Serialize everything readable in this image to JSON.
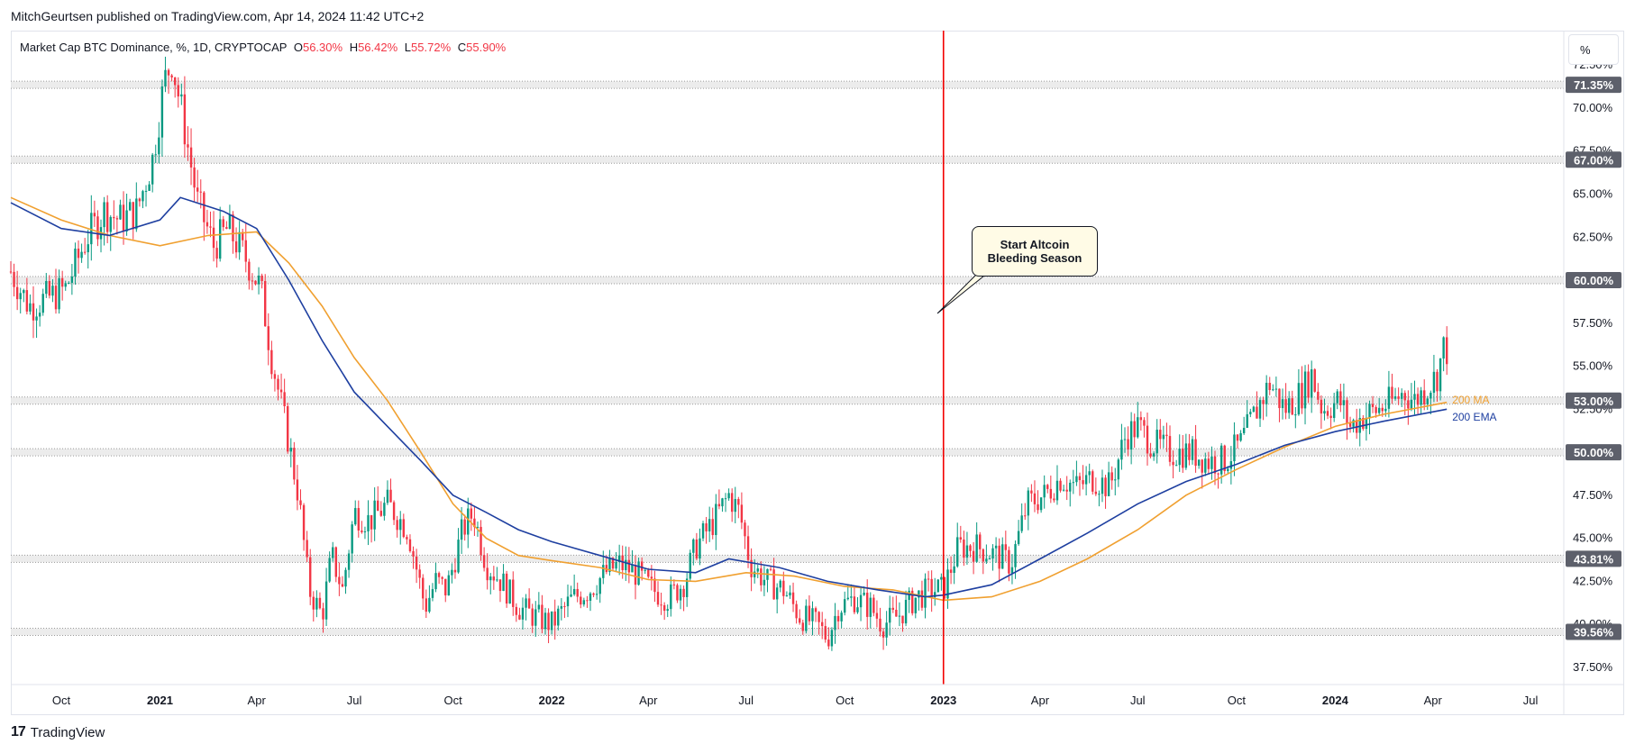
{
  "header": {
    "publisher": "MitchGeurtsen published on TradingView.com, Apr 14, 2024 11:42 UTC+2"
  },
  "legend": {
    "symbol": "Market Cap BTC Dominance, %, 1D, CRYPTOCAP",
    "open_label": "O",
    "open_value": "56.30%",
    "high_label": "H",
    "high_value": "56.42%",
    "low_label": "L",
    "low_value": "55.72%",
    "close_label": "C",
    "close_value": "55.90%"
  },
  "unit_button": {
    "label": "%"
  },
  "annotation": {
    "line1": "Start Altcoin",
    "line2": "Bleeding Season"
  },
  "moving_averages": {
    "ma_label": "200 MA",
    "ema_label": "200 EMA"
  },
  "footer": {
    "brand": "TradingView",
    "logo_glyph": "17"
  },
  "colors": {
    "up": "#089981",
    "down": "#f23645",
    "ma": "#f0a030",
    "ema": "#1e3fa0",
    "event_line": "#f20000",
    "level_band": "#e6e6e6",
    "price_label_bg": "#5d606b"
  },
  "chart_data": {
    "type": "candlestick",
    "title": "Market Cap BTC Dominance, %, 1D, CRYPTOCAP",
    "y_unit": "%",
    "ylim": [
      36.5,
      74.5
    ],
    "y_ticks": [
      "72.50%",
      "70.00%",
      "67.50%",
      "65.00%",
      "62.50%",
      "60.00%",
      "57.50%",
      "55.00%",
      "52.50%",
      "50.00%",
      "47.50%",
      "45.00%",
      "42.50%",
      "40.00%",
      "37.50%"
    ],
    "y_tick_values": [
      72.5,
      70,
      67.5,
      65,
      62.5,
      60,
      57.5,
      55,
      52.5,
      50,
      47.5,
      45,
      42.5,
      40,
      37.5
    ],
    "x_range": [
      "2020-08-15",
      "2024-08-01"
    ],
    "x_ticks": [
      {
        "date": "2020-10-01",
        "label": "Oct",
        "bold": false
      },
      {
        "date": "2021-01-01",
        "label": "2021",
        "bold": true
      },
      {
        "date": "2021-04-01",
        "label": "Apr",
        "bold": false
      },
      {
        "date": "2021-07-01",
        "label": "Jul",
        "bold": false
      },
      {
        "date": "2021-10-01",
        "label": "Oct",
        "bold": false
      },
      {
        "date": "2022-01-01",
        "label": "2022",
        "bold": true
      },
      {
        "date": "2022-04-01",
        "label": "Apr",
        "bold": false
      },
      {
        "date": "2022-07-01",
        "label": "Jul",
        "bold": false
      },
      {
        "date": "2022-10-01",
        "label": "Oct",
        "bold": false
      },
      {
        "date": "2023-01-01",
        "label": "2023",
        "bold": true
      },
      {
        "date": "2023-04-01",
        "label": "Apr",
        "bold": false
      },
      {
        "date": "2023-07-01",
        "label": "Jul",
        "bold": false
      },
      {
        "date": "2023-10-01",
        "label": "Oct",
        "bold": false
      },
      {
        "date": "2024-01-01",
        "label": "2024",
        "bold": true
      },
      {
        "date": "2024-04-01",
        "label": "Apr",
        "bold": false
      },
      {
        "date": "2024-07-01",
        "label": "Jul",
        "bold": false
      }
    ],
    "horizontal_levels": [
      {
        "value": 71.35,
        "label": "71.35%"
      },
      {
        "value": 67.0,
        "label": "67.00%"
      },
      {
        "value": 60.0,
        "label": "60.00%"
      },
      {
        "value": 53.0,
        "label": "53.00%"
      },
      {
        "value": 50.0,
        "label": "50.00%"
      },
      {
        "value": 43.81,
        "label": "43.81%"
      },
      {
        "value": 39.56,
        "label": "39.56%"
      }
    ],
    "event_line": {
      "date": "2023-01-01"
    },
    "price_path": [
      {
        "date": "2020-08-15",
        "value": 60.5
      },
      {
        "date": "2020-09-01",
        "value": 58.5
      },
      {
        "date": "2020-09-20",
        "value": 59.0
      },
      {
        "date": "2020-10-05",
        "value": 59.5
      },
      {
        "date": "2020-10-25",
        "value": 62.5
      },
      {
        "date": "2020-11-10",
        "value": 64.0
      },
      {
        "date": "2020-11-25",
        "value": 63.5
      },
      {
        "date": "2020-12-10",
        "value": 64.0
      },
      {
        "date": "2020-12-25",
        "value": 67.0
      },
      {
        "date": "2021-01-05",
        "value": 71.5
      },
      {
        "date": "2021-01-12",
        "value": 72.8
      },
      {
        "date": "2021-01-22",
        "value": 69.5
      },
      {
        "date": "2021-02-05",
        "value": 64.5
      },
      {
        "date": "2021-02-20",
        "value": 62.0
      },
      {
        "date": "2021-03-05",
        "value": 63.0
      },
      {
        "date": "2021-03-20",
        "value": 61.5
      },
      {
        "date": "2021-04-05",
        "value": 59.5
      },
      {
        "date": "2021-04-15",
        "value": 55.5
      },
      {
        "date": "2021-04-28",
        "value": 51.5
      },
      {
        "date": "2021-05-10",
        "value": 47.5
      },
      {
        "date": "2021-05-20",
        "value": 42.0
      },
      {
        "date": "2021-06-01",
        "value": 40.5
      },
      {
        "date": "2021-06-10",
        "value": 44.0
      },
      {
        "date": "2021-06-20",
        "value": 42.0
      },
      {
        "date": "2021-07-01",
        "value": 46.5
      },
      {
        "date": "2021-07-15",
        "value": 46.0
      },
      {
        "date": "2021-08-01",
        "value": 47.0
      },
      {
        "date": "2021-08-20",
        "value": 45.5
      },
      {
        "date": "2021-09-05",
        "value": 41.0
      },
      {
        "date": "2021-09-15",
        "value": 42.5
      },
      {
        "date": "2021-09-25",
        "value": 42.0
      },
      {
        "date": "2021-10-10",
        "value": 45.5
      },
      {
        "date": "2021-10-20",
        "value": 46.5
      },
      {
        "date": "2021-11-01",
        "value": 43.5
      },
      {
        "date": "2021-11-15",
        "value": 42.5
      },
      {
        "date": "2021-12-01",
        "value": 41.0
      },
      {
        "date": "2021-12-15",
        "value": 40.5
      },
      {
        "date": "2022-01-01",
        "value": 40.0
      },
      {
        "date": "2022-01-20",
        "value": 41.5
      },
      {
        "date": "2022-02-05",
        "value": 42.0
      },
      {
        "date": "2022-02-20",
        "value": 43.0
      },
      {
        "date": "2022-03-05",
        "value": 43.5
      },
      {
        "date": "2022-03-20",
        "value": 43.0
      },
      {
        "date": "2022-04-05",
        "value": 42.0
      },
      {
        "date": "2022-04-20",
        "value": 41.5
      },
      {
        "date": "2022-05-05",
        "value": 42.5
      },
      {
        "date": "2022-05-15",
        "value": 44.5
      },
      {
        "date": "2022-06-01",
        "value": 46.0
      },
      {
        "date": "2022-06-15",
        "value": 47.5
      },
      {
        "date": "2022-06-25",
        "value": 46.5
      },
      {
        "date": "2022-07-05",
        "value": 43.5
      },
      {
        "date": "2022-07-20",
        "value": 42.5
      },
      {
        "date": "2022-08-05",
        "value": 42.0
      },
      {
        "date": "2022-08-20",
        "value": 40.5
      },
      {
        "date": "2022-09-05",
        "value": 40.0
      },
      {
        "date": "2022-09-15",
        "value": 39.2
      },
      {
        "date": "2022-09-25",
        "value": 41.0
      },
      {
        "date": "2022-10-10",
        "value": 41.5
      },
      {
        "date": "2022-10-25",
        "value": 41.0
      },
      {
        "date": "2022-11-05",
        "value": 40.0
      },
      {
        "date": "2022-11-20",
        "value": 40.5
      },
      {
        "date": "2022-12-05",
        "value": 41.5
      },
      {
        "date": "2022-12-20",
        "value": 42.0
      },
      {
        "date": "2023-01-01",
        "value": 42.0
      },
      {
        "date": "2023-01-15",
        "value": 44.5
      },
      {
        "date": "2023-02-01",
        "value": 44.5
      },
      {
        "date": "2023-02-20",
        "value": 44.0
      },
      {
        "date": "2023-03-05",
        "value": 43.5
      },
      {
        "date": "2023-03-20",
        "value": 47.0
      },
      {
        "date": "2023-04-05",
        "value": 47.5
      },
      {
        "date": "2023-04-20",
        "value": 48.5
      },
      {
        "date": "2023-05-05",
        "value": 48.0
      },
      {
        "date": "2023-05-20",
        "value": 48.5
      },
      {
        "date": "2023-06-05",
        "value": 48.0
      },
      {
        "date": "2023-06-20",
        "value": 51.0
      },
      {
        "date": "2023-07-01",
        "value": 51.5
      },
      {
        "date": "2023-07-15",
        "value": 50.5
      },
      {
        "date": "2023-08-01",
        "value": 50.0
      },
      {
        "date": "2023-08-20",
        "value": 50.0
      },
      {
        "date": "2023-09-05",
        "value": 49.5
      },
      {
        "date": "2023-09-20",
        "value": 49.5
      },
      {
        "date": "2023-10-05",
        "value": 50.5
      },
      {
        "date": "2023-10-20",
        "value": 52.5
      },
      {
        "date": "2023-11-01",
        "value": 54.0
      },
      {
        "date": "2023-11-15",
        "value": 52.5
      },
      {
        "date": "2023-12-01",
        "value": 53.5
      },
      {
        "date": "2023-12-10",
        "value": 54.5
      },
      {
        "date": "2023-12-20",
        "value": 52.5
      },
      {
        "date": "2024-01-05",
        "value": 53.0
      },
      {
        "date": "2024-01-15",
        "value": 51.5
      },
      {
        "date": "2024-01-25",
        "value": 52.0
      },
      {
        "date": "2024-02-10",
        "value": 52.5
      },
      {
        "date": "2024-02-25",
        "value": 53.0
      },
      {
        "date": "2024-03-05",
        "value": 53.5
      },
      {
        "date": "2024-03-15",
        "value": 53.0
      },
      {
        "date": "2024-03-30",
        "value": 54.0
      },
      {
        "date": "2024-04-05",
        "value": 54.5
      },
      {
        "date": "2024-04-12",
        "value": 56.3
      },
      {
        "date": "2024-04-14",
        "value": 55.9
      }
    ],
    "ma200": [
      {
        "date": "2020-08-15",
        "value": 64.8
      },
      {
        "date": "2020-10-01",
        "value": 63.5
      },
      {
        "date": "2020-11-15",
        "value": 62.6
      },
      {
        "date": "2021-01-01",
        "value": 62.0
      },
      {
        "date": "2021-02-15",
        "value": 62.6
      },
      {
        "date": "2021-04-01",
        "value": 62.8
      },
      {
        "date": "2021-05-01",
        "value": 61.0
      },
      {
        "date": "2021-06-01",
        "value": 58.5
      },
      {
        "date": "2021-07-01",
        "value": 55.5
      },
      {
        "date": "2021-08-01",
        "value": 53.0
      },
      {
        "date": "2021-09-01",
        "value": 50.0
      },
      {
        "date": "2021-10-01",
        "value": 47.0
      },
      {
        "date": "2021-11-01",
        "value": 45.0
      },
      {
        "date": "2021-12-01",
        "value": 44.0
      },
      {
        "date": "2022-01-01",
        "value": 43.7
      },
      {
        "date": "2022-02-15",
        "value": 43.3
      },
      {
        "date": "2022-04-01",
        "value": 42.6
      },
      {
        "date": "2022-05-15",
        "value": 42.5
      },
      {
        "date": "2022-07-01",
        "value": 43.0
      },
      {
        "date": "2022-08-15",
        "value": 42.8
      },
      {
        "date": "2022-10-01",
        "value": 42.2
      },
      {
        "date": "2022-11-15",
        "value": 42.0
      },
      {
        "date": "2023-01-01",
        "value": 41.4
      },
      {
        "date": "2023-02-15",
        "value": 41.6
      },
      {
        "date": "2023-04-01",
        "value": 42.5
      },
      {
        "date": "2023-05-15",
        "value": 43.8
      },
      {
        "date": "2023-07-01",
        "value": 45.5
      },
      {
        "date": "2023-08-15",
        "value": 47.5
      },
      {
        "date": "2023-10-01",
        "value": 49.0
      },
      {
        "date": "2023-11-15",
        "value": 50.3
      },
      {
        "date": "2024-01-01",
        "value": 51.5
      },
      {
        "date": "2024-02-15",
        "value": 52.2
      },
      {
        "date": "2024-04-14",
        "value": 52.9
      }
    ],
    "ema200": [
      {
        "date": "2020-08-15",
        "value": 64.5
      },
      {
        "date": "2020-10-01",
        "value": 63.0
      },
      {
        "date": "2020-11-15",
        "value": 62.6
      },
      {
        "date": "2021-01-01",
        "value": 63.5
      },
      {
        "date": "2021-01-20",
        "value": 64.8
      },
      {
        "date": "2021-03-01",
        "value": 64.0
      },
      {
        "date": "2021-04-01",
        "value": 63.0
      },
      {
        "date": "2021-05-01",
        "value": 60.0
      },
      {
        "date": "2021-06-01",
        "value": 56.5
      },
      {
        "date": "2021-07-01",
        "value": 53.5
      },
      {
        "date": "2021-08-01",
        "value": 51.5
      },
      {
        "date": "2021-09-01",
        "value": 49.5
      },
      {
        "date": "2021-10-01",
        "value": 47.5
      },
      {
        "date": "2021-11-01",
        "value": 46.5
      },
      {
        "date": "2021-12-01",
        "value": 45.5
      },
      {
        "date": "2022-01-01",
        "value": 44.8
      },
      {
        "date": "2022-02-15",
        "value": 44.0
      },
      {
        "date": "2022-04-01",
        "value": 43.2
      },
      {
        "date": "2022-05-15",
        "value": 43.0
      },
      {
        "date": "2022-06-15",
        "value": 43.8
      },
      {
        "date": "2022-08-01",
        "value": 43.3
      },
      {
        "date": "2022-09-15",
        "value": 42.5
      },
      {
        "date": "2022-11-01",
        "value": 42.0
      },
      {
        "date": "2022-12-15",
        "value": 41.6
      },
      {
        "date": "2023-01-01",
        "value": 41.7
      },
      {
        "date": "2023-02-15",
        "value": 42.3
      },
      {
        "date": "2023-04-01",
        "value": 43.8
      },
      {
        "date": "2023-05-15",
        "value": 45.3
      },
      {
        "date": "2023-07-01",
        "value": 47.0
      },
      {
        "date": "2023-08-15",
        "value": 48.3
      },
      {
        "date": "2023-10-01",
        "value": 49.3
      },
      {
        "date": "2023-11-15",
        "value": 50.4
      },
      {
        "date": "2024-01-01",
        "value": 51.2
      },
      {
        "date": "2024-02-15",
        "value": 51.8
      },
      {
        "date": "2024-04-14",
        "value": 52.5
      }
    ]
  }
}
